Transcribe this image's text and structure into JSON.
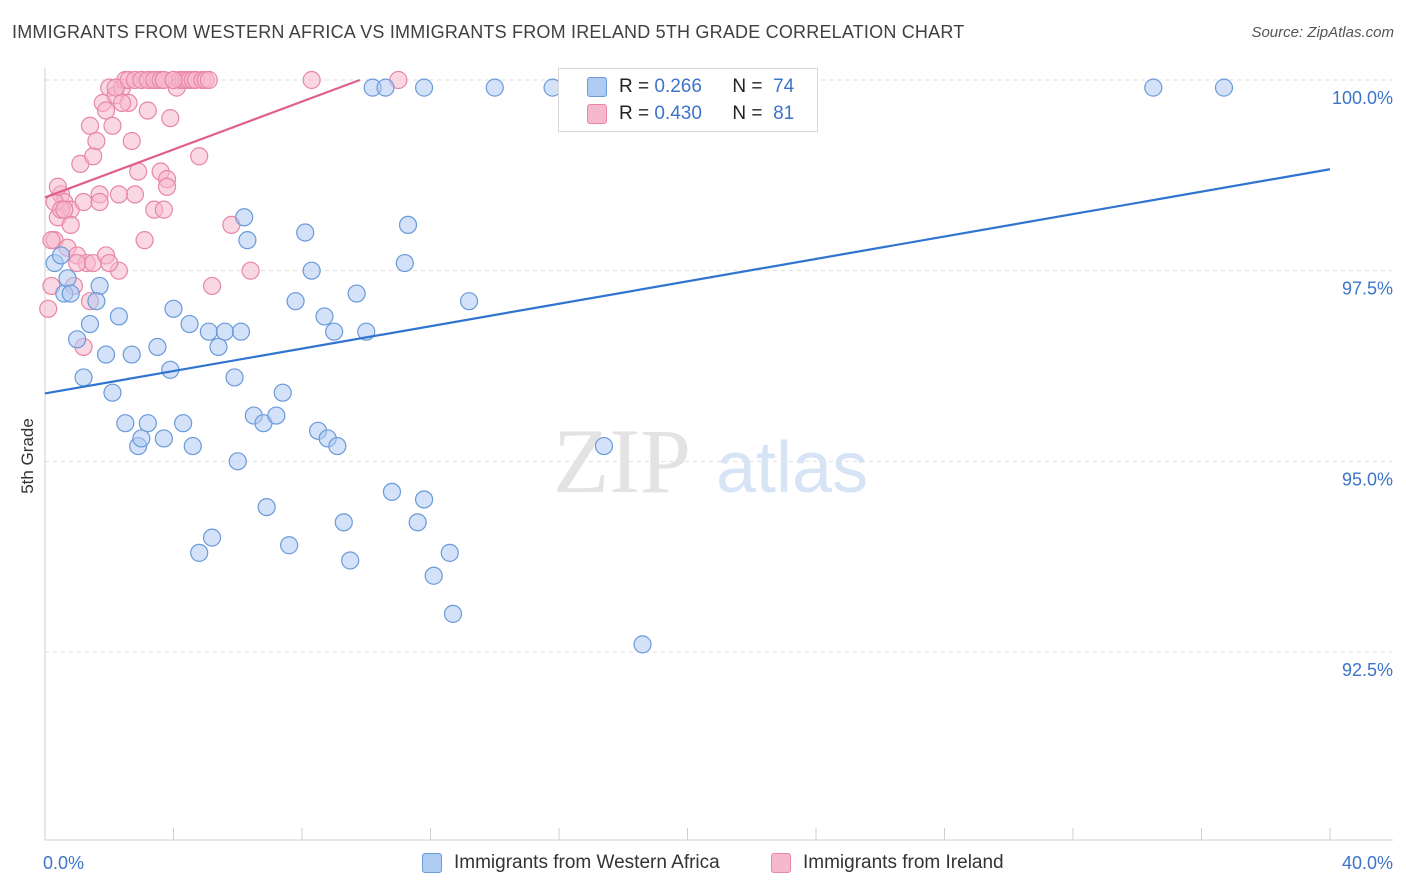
{
  "title": "IMMIGRANTS FROM WESTERN AFRICA VS IMMIGRANTS FROM IRELAND 5TH GRADE CORRELATION CHART",
  "source": "Source: ZipAtlas.com",
  "watermark": {
    "zip": "ZIP",
    "atlas": "atlas"
  },
  "stats": {
    "r_label": "R =",
    "n_label": "N =",
    "blue": {
      "r": "0.266",
      "n": "74"
    },
    "pink": {
      "r": "0.430",
      "n": "81"
    }
  },
  "colors": {
    "blue_fill": "#aecbf2",
    "blue_stroke": "#6a9ad8",
    "blue_line": "#2f74d0",
    "pink_fill": "#f6b8cc",
    "pink_stroke": "#e886a6",
    "pink_line": "#e0608a",
    "grid": "#dedede",
    "tick_label": "#3d74c9"
  },
  "chart_data": {
    "type": "scatter",
    "title": "IMMIGRANTS FROM WESTERN AFRICA VS IMMIGRANTS FROM IRELAND 5TH GRADE CORRELATION CHART",
    "xlabel": "",
    "ylabel": "5th Grade",
    "xlim": [
      0,
      40
    ],
    "ylim": [
      90.2,
      100.2
    ],
    "x_tick_labels": [
      "0.0%",
      "40.0%"
    ],
    "y_ticks": [
      92.5,
      95.0,
      97.5,
      100.0
    ],
    "y_tick_labels": [
      "92.5%",
      "95.0%",
      "97.5%",
      "100.0%"
    ],
    "grid": true,
    "legend_position": "bottom",
    "series": [
      {
        "name": "Immigrants from Western Africa",
        "color": "#aecbf2",
        "trend": [
          [
            0,
            95.89
          ],
          [
            40,
            98.83
          ]
        ],
        "points": [
          [
            0.3,
            97.6
          ],
          [
            0.6,
            97.2
          ],
          [
            0.7,
            97.4
          ],
          [
            0.8,
            97.2
          ],
          [
            1.0,
            96.6
          ],
          [
            1.2,
            96.1
          ],
          [
            1.4,
            96.8
          ],
          [
            1.7,
            97.3
          ],
          [
            1.9,
            96.4
          ],
          [
            2.1,
            95.9
          ],
          [
            2.3,
            96.9
          ],
          [
            2.5,
            95.5
          ],
          [
            2.7,
            96.4
          ],
          [
            2.9,
            95.2
          ],
          [
            3.0,
            95.3
          ],
          [
            3.2,
            95.5
          ],
          [
            3.5,
            96.5
          ],
          [
            3.7,
            95.3
          ],
          [
            3.9,
            96.2
          ],
          [
            4.0,
            97.0
          ],
          [
            4.3,
            95.5
          ],
          [
            4.5,
            96.8
          ],
          [
            4.6,
            95.2
          ],
          [
            4.8,
            93.8
          ],
          [
            5.1,
            96.7
          ],
          [
            5.2,
            94.0
          ],
          [
            5.4,
            96.5
          ],
          [
            5.6,
            96.7
          ],
          [
            5.9,
            96.1
          ],
          [
            6.0,
            95.0
          ],
          [
            6.1,
            96.7
          ],
          [
            6.3,
            97.9
          ],
          [
            6.5,
            95.6
          ],
          [
            6.8,
            95.5
          ],
          [
            6.9,
            94.4
          ],
          [
            7.2,
            95.6
          ],
          [
            7.4,
            95.9
          ],
          [
            7.6,
            93.9
          ],
          [
            7.8,
            97.1
          ],
          [
            8.1,
            98.0
          ],
          [
            8.3,
            97.5
          ],
          [
            8.5,
            95.4
          ],
          [
            8.7,
            96.9
          ],
          [
            8.8,
            95.3
          ],
          [
            9.0,
            96.7
          ],
          [
            9.1,
            95.2
          ],
          [
            9.3,
            94.2
          ],
          [
            9.5,
            93.7
          ],
          [
            9.7,
            97.2
          ],
          [
            10.0,
            96.7
          ],
          [
            10.8,
            94.6
          ],
          [
            11.2,
            97.6
          ],
          [
            11.6,
            94.2
          ],
          [
            11.8,
            94.5
          ],
          [
            12.1,
            93.5
          ],
          [
            12.6,
            93.8
          ],
          [
            12.7,
            93.0
          ],
          [
            13.2,
            97.1
          ],
          [
            6.2,
            98.2
          ],
          [
            11.3,
            98.1
          ],
          [
            14.0,
            99.9
          ],
          [
            17.4,
            95.2
          ],
          [
            18.6,
            92.6
          ],
          [
            15.8,
            99.9
          ],
          [
            18.0,
            99.9
          ],
          [
            34.5,
            99.9
          ],
          [
            36.7,
            99.9
          ],
          [
            16.5,
            99.9
          ],
          [
            17.2,
            99.9
          ],
          [
            10.2,
            99.9
          ],
          [
            11.8,
            99.9
          ],
          [
            10.6,
            99.9
          ],
          [
            0.5,
            97.7
          ],
          [
            1.6,
            97.1
          ]
        ]
      },
      {
        "name": "Immigrants from Ireland",
        "color": "#f6b8cc",
        "trend": [
          [
            0,
            98.46
          ],
          [
            9.8,
            100.0
          ]
        ],
        "points": [
          [
            0.1,
            97.0
          ],
          [
            0.2,
            97.3
          ],
          [
            0.3,
            97.9
          ],
          [
            0.4,
            98.2
          ],
          [
            0.5,
            98.5
          ],
          [
            0.6,
            98.4
          ],
          [
            0.7,
            97.8
          ],
          [
            0.8,
            98.3
          ],
          [
            0.9,
            97.3
          ],
          [
            1.0,
            97.7
          ],
          [
            1.1,
            98.9
          ],
          [
            1.2,
            98.4
          ],
          [
            1.3,
            97.6
          ],
          [
            1.4,
            99.4
          ],
          [
            1.5,
            99.0
          ],
          [
            1.6,
            99.2
          ],
          [
            1.7,
            98.5
          ],
          [
            1.8,
            99.7
          ],
          [
            1.9,
            99.6
          ],
          [
            2.0,
            99.9
          ],
          [
            2.1,
            99.4
          ],
          [
            2.2,
            99.8
          ],
          [
            2.3,
            97.5
          ],
          [
            2.4,
            99.9
          ],
          [
            2.5,
            100.0
          ],
          [
            2.6,
            99.7
          ],
          [
            2.7,
            99.2
          ],
          [
            2.8,
            98.5
          ],
          [
            2.9,
            98.8
          ],
          [
            3.0,
            100.0
          ],
          [
            3.1,
            97.9
          ],
          [
            3.2,
            99.6
          ],
          [
            3.3,
            100.0
          ],
          [
            3.4,
            98.3
          ],
          [
            3.5,
            100.0
          ],
          [
            3.6,
            98.8
          ],
          [
            3.7,
            98.3
          ],
          [
            3.8,
            98.7
          ],
          [
            3.9,
            99.5
          ],
          [
            4.0,
            100.0
          ],
          [
            4.1,
            99.9
          ],
          [
            4.2,
            100.0
          ],
          [
            4.3,
            100.0
          ],
          [
            4.4,
            100.0
          ],
          [
            4.5,
            100.0
          ],
          [
            4.6,
            100.0
          ],
          [
            4.7,
            100.0
          ],
          [
            4.8,
            99.0
          ],
          [
            4.9,
            100.0
          ],
          [
            5.0,
            100.0
          ],
          [
            5.1,
            100.0
          ],
          [
            5.2,
            97.3
          ],
          [
            5.8,
            98.1
          ],
          [
            6.4,
            97.5
          ],
          [
            8.3,
            100.0
          ],
          [
            11.0,
            100.0
          ],
          [
            0.3,
            98.4
          ],
          [
            0.5,
            98.3
          ],
          [
            0.8,
            98.1
          ],
          [
            1.0,
            97.6
          ],
          [
            1.2,
            96.5
          ],
          [
            1.4,
            97.1
          ],
          [
            1.5,
            97.6
          ],
          [
            1.7,
            98.4
          ],
          [
            1.9,
            97.7
          ],
          [
            2.0,
            97.6
          ],
          [
            2.2,
            99.9
          ],
          [
            2.4,
            99.7
          ],
          [
            2.6,
            100.0
          ],
          [
            2.8,
            100.0
          ],
          [
            3.0,
            100.0
          ],
          [
            3.2,
            100.0
          ],
          [
            3.4,
            100.0
          ],
          [
            3.6,
            100.0
          ],
          [
            3.7,
            100.0
          ],
          [
            3.8,
            98.6
          ],
          [
            0.2,
            97.9
          ],
          [
            0.4,
            98.6
          ],
          [
            0.6,
            98.3
          ],
          [
            2.3,
            98.5
          ],
          [
            4.0,
            100.0
          ]
        ]
      }
    ]
  }
}
